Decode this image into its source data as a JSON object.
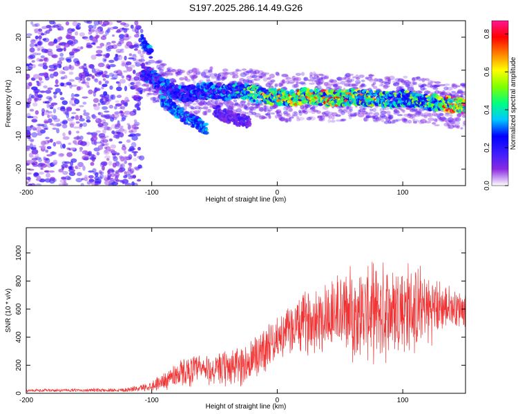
{
  "title": "S197.2025.286.14.49.G26",
  "colors": {
    "snr_line": "#f03232",
    "colorbar": [
      "#ffffff",
      "#8a2be2",
      "#3a1cff",
      "#0000ff",
      "#00c8ff",
      "#00ff80",
      "#80ff00",
      "#ffff00",
      "#ff8000",
      "#ff0000",
      "#ff1493"
    ]
  },
  "chart_data": [
    {
      "type": "heatmap",
      "name": "spectrogram",
      "xlabel": "Height of straight line (km)",
      "ylabel": "Frequency (Hz)",
      "xlim": [
        -200,
        150
      ],
      "ylim": [
        -25,
        25
      ],
      "xticks": [
        -200,
        -100,
        0,
        100
      ],
      "yticks": [
        -20,
        -10,
        0,
        10,
        20
      ],
      "colorbar": {
        "label": "Normalized spectral amplitude",
        "range": [
          0,
          0.87
        ],
        "ticks": [
          0.0,
          0.2,
          0.4,
          0.6,
          0.8
        ]
      },
      "noise_region": {
        "x": [
          -200,
          -108
        ],
        "y": [
          -25,
          25
        ],
        "amplitude": 0.12
      },
      "ridge": {
        "x": [
          -108,
          -100,
          -90,
          -80,
          -70,
          -60,
          -50,
          -40,
          -30,
          -20,
          -10,
          0,
          10,
          20,
          30,
          40,
          50,
          60,
          70,
          80,
          90,
          100,
          110,
          120,
          130,
          140,
          150
        ],
        "freq": [
          9.5,
          8,
          5,
          3,
          3,
          3.5,
          4,
          3,
          4,
          3,
          2,
          2,
          1.5,
          2,
          2,
          1.5,
          1.5,
          2,
          1.5,
          1.5,
          1,
          1.5,
          1,
          0.5,
          0,
          -0.5,
          -1
        ],
        "amplitude": [
          0.25,
          0.28,
          0.3,
          0.3,
          0.3,
          0.32,
          0.33,
          0.35,
          0.4,
          0.55,
          0.6,
          0.65,
          0.7,
          0.7,
          0.68,
          0.7,
          0.65,
          0.6,
          0.6,
          0.55,
          0.5,
          0.5,
          0.5,
          0.55,
          0.65,
          0.85,
          0.8
        ]
      },
      "branches": [
        {
          "x": [
            -108,
            -104,
            -100
          ],
          "freq": [
            19,
            17,
            15
          ],
          "amplitude": 0.28
        },
        {
          "x": [
            -92,
            -85,
            -78,
            -70,
            -62,
            -56
          ],
          "freq": [
            1,
            -1,
            -3,
            -5,
            -6.5,
            -8
          ],
          "amplitude": 0.3
        },
        {
          "x": [
            -50,
            -40,
            -30,
            -22
          ],
          "freq": [
            -2,
            -4,
            -5,
            -6
          ],
          "amplitude": 0.15
        }
      ]
    },
    {
      "type": "line",
      "name": "snr",
      "xlabel": "Height of straight line (km)",
      "ylabel": "SNR (10 * v/v)",
      "xlim": [
        -200,
        150
      ],
      "ylim": [
        0,
        1180
      ],
      "xticks": [
        -200,
        -100,
        0,
        100
      ],
      "yticks": [
        0,
        200,
        400,
        600,
        800,
        1000
      ],
      "series": [
        {
          "name": "SNR",
          "x": [
            -200,
            -180,
            -160,
            -140,
            -120,
            -110,
            -100,
            -90,
            -80,
            -70,
            -60,
            -50,
            -40,
            -30,
            -20,
            -15,
            -10,
            0,
            10,
            20,
            30,
            40,
            50,
            60,
            70,
            80,
            90,
            100,
            110,
            120,
            130,
            140,
            150
          ],
          "mean": [
            20,
            20,
            22,
            22,
            25,
            35,
            55,
            90,
            140,
            160,
            170,
            160,
            180,
            200,
            220,
            280,
            330,
            390,
            450,
            500,
            540,
            560,
            570,
            570,
            575,
            580,
            590,
            600,
            600,
            600,
            610,
            610,
            605
          ],
          "amplitude": [
            10,
            10,
            10,
            12,
            15,
            20,
            35,
            60,
            90,
            100,
            110,
            100,
            130,
            140,
            160,
            190,
            160,
            130,
            170,
            200,
            230,
            260,
            290,
            300,
            310,
            330,
            330,
            340,
            300,
            250,
            180,
            130,
            120
          ]
        }
      ]
    }
  ]
}
